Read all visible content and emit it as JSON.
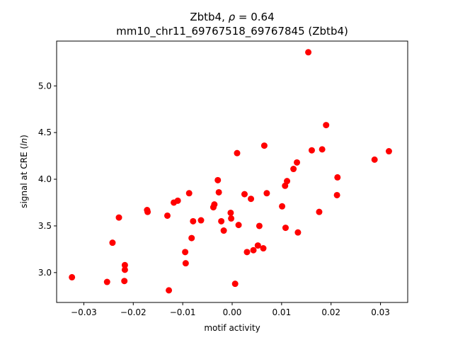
{
  "chart_data": {
    "type": "scatter",
    "title_line1": "Zbtb4, ρ = 0.64",
    "title_line2": "mm10_chr11_69767518_69767845 (Zbtb4)",
    "xlabel": "motif activity",
    "ylabel": "signal at CRE (ln)",
    "xlim": [
      -0.0355,
      0.0355
    ],
    "ylim": [
      2.68,
      5.48
    ],
    "xticks": [
      -0.03,
      -0.02,
      -0.01,
      0.0,
      0.01,
      0.02,
      0.03
    ],
    "xtick_labels": [
      "−0.03",
      "−0.02",
      "−0.01",
      "0.00",
      "0.01",
      "0.02",
      "0.03"
    ],
    "yticks": [
      3.0,
      3.5,
      4.0,
      4.5,
      5.0
    ],
    "ytick_labels": [
      "3.0",
      "3.5",
      "4.0",
      "4.5",
      "5.0"
    ],
    "grid": false,
    "marker_color": "#ff0000",
    "points": [
      {
        "x": -0.0324,
        "y": 2.95
      },
      {
        "x": -0.0253,
        "y": 2.9
      },
      {
        "x": -0.0242,
        "y": 3.32
      },
      {
        "x": -0.0229,
        "y": 3.59
      },
      {
        "x": -0.0217,
        "y": 3.08
      },
      {
        "x": -0.0217,
        "y": 3.03
      },
      {
        "x": -0.0218,
        "y": 2.91
      },
      {
        "x": -0.0172,
        "y": 3.67
      },
      {
        "x": -0.0171,
        "y": 3.65
      },
      {
        "x": -0.0131,
        "y": 3.61
      },
      {
        "x": -0.0128,
        "y": 2.81
      },
      {
        "x": -0.0118,
        "y": 3.75
      },
      {
        "x": -0.011,
        "y": 3.77
      },
      {
        "x": -0.0095,
        "y": 3.22
      },
      {
        "x": -0.0094,
        "y": 3.1
      },
      {
        "x": -0.0087,
        "y": 3.85
      },
      {
        "x": -0.0082,
        "y": 3.37
      },
      {
        "x": -0.0079,
        "y": 3.55
      },
      {
        "x": -0.0063,
        "y": 3.56
      },
      {
        "x": -0.0038,
        "y": 3.7
      },
      {
        "x": -0.0036,
        "y": 3.73
      },
      {
        "x": -0.0029,
        "y": 3.99
      },
      {
        "x": -0.0027,
        "y": 3.86
      },
      {
        "x": -0.0022,
        "y": 3.55
      },
      {
        "x": -0.0017,
        "y": 3.45
      },
      {
        "x": -0.0003,
        "y": 3.64
      },
      {
        "x": -0.0002,
        "y": 3.58
      },
      {
        "x": 0.0006,
        "y": 2.88
      },
      {
        "x": 0.001,
        "y": 4.28
      },
      {
        "x": 0.0013,
        "y": 3.51
      },
      {
        "x": 0.0025,
        "y": 3.84
      },
      {
        "x": 0.003,
        "y": 3.22
      },
      {
        "x": 0.0038,
        "y": 3.79
      },
      {
        "x": 0.0043,
        "y": 3.24
      },
      {
        "x": 0.0052,
        "y": 3.29
      },
      {
        "x": 0.0055,
        "y": 3.5
      },
      {
        "x": 0.0063,
        "y": 3.26
      },
      {
        "x": 0.0065,
        "y": 4.36
      },
      {
        "x": 0.007,
        "y": 3.85
      },
      {
        "x": 0.0101,
        "y": 3.71
      },
      {
        "x": 0.0107,
        "y": 3.93
      },
      {
        "x": 0.0108,
        "y": 3.48
      },
      {
        "x": 0.0111,
        "y": 3.98
      },
      {
        "x": 0.0124,
        "y": 4.11
      },
      {
        "x": 0.0131,
        "y": 4.18
      },
      {
        "x": 0.0133,
        "y": 3.43
      },
      {
        "x": 0.0154,
        "y": 5.36
      },
      {
        "x": 0.0161,
        "y": 4.31
      },
      {
        "x": 0.0176,
        "y": 3.65
      },
      {
        "x": 0.0182,
        "y": 4.32
      },
      {
        "x": 0.019,
        "y": 4.58
      },
      {
        "x": 0.0212,
        "y": 3.83
      },
      {
        "x": 0.0213,
        "y": 4.02
      },
      {
        "x": 0.0288,
        "y": 4.21
      },
      {
        "x": 0.0317,
        "y": 4.3
      }
    ]
  }
}
